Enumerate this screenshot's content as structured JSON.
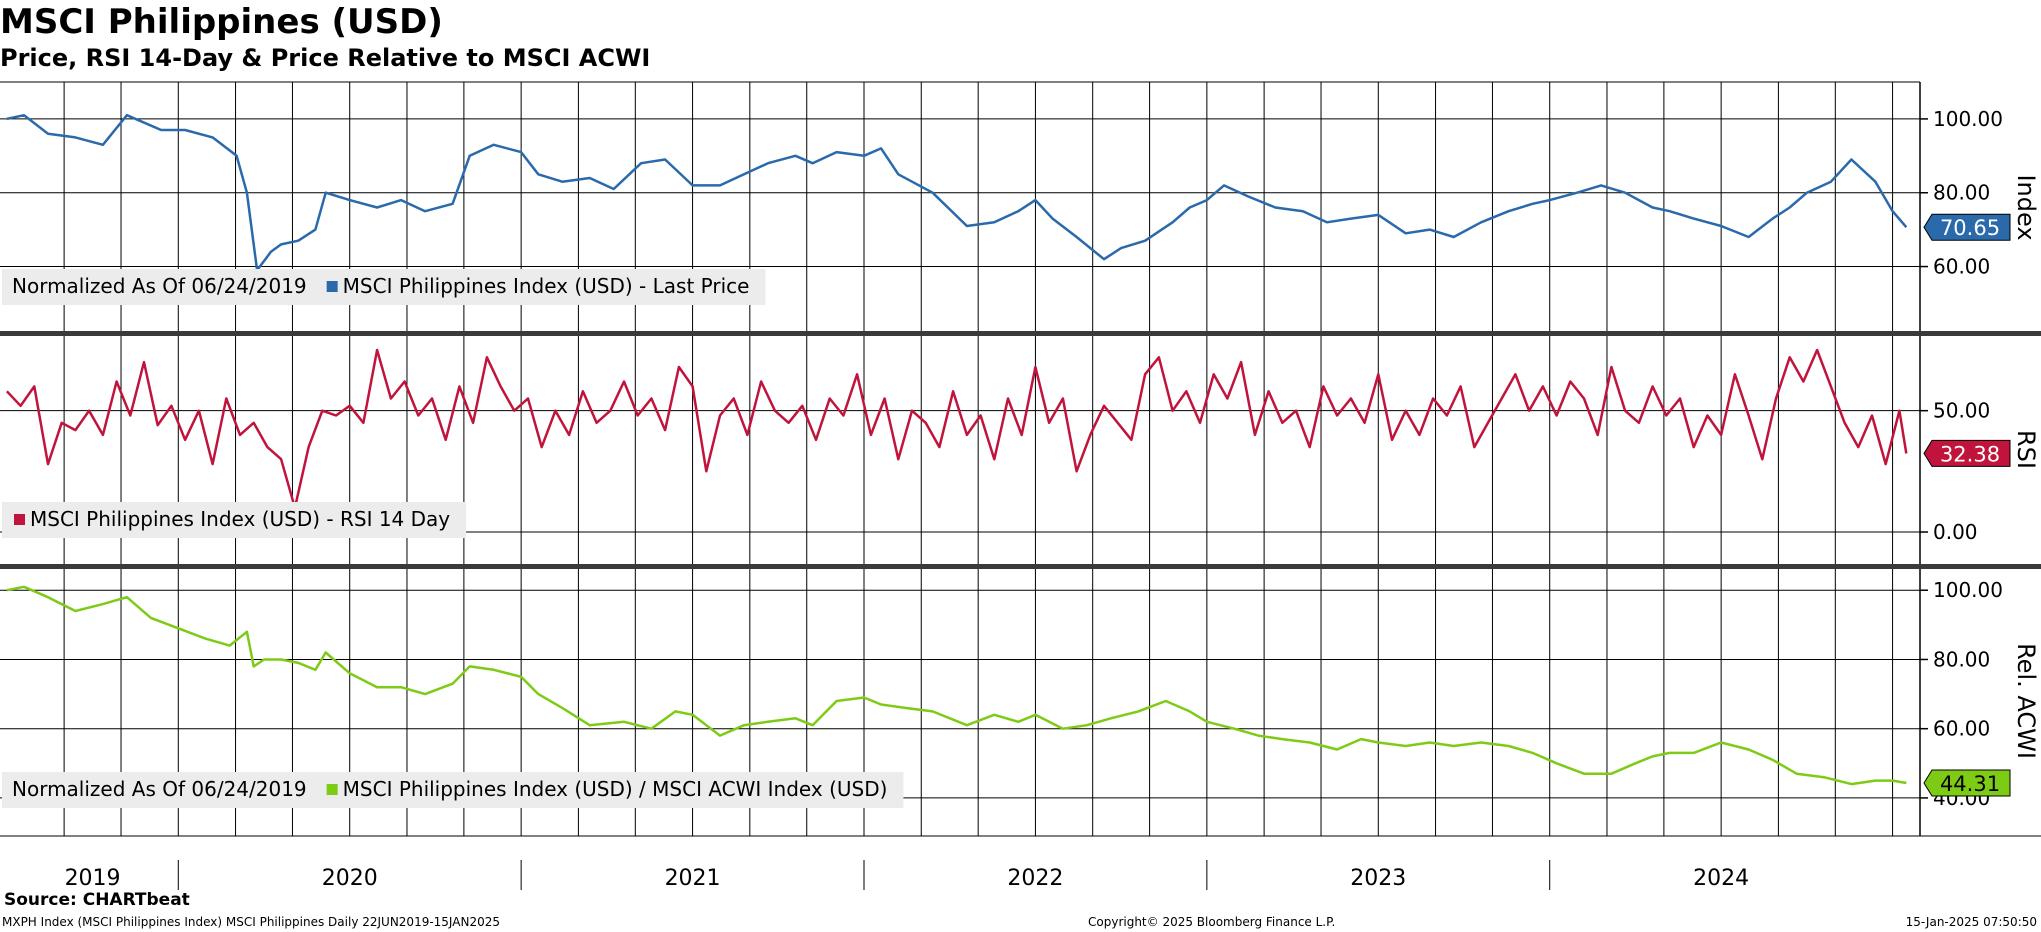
{
  "header": {
    "title": "MSCI Philippines (USD)",
    "subtitle": "Price, RSI 14-Day & Price Relative to MSCI ACWI"
  },
  "footer": {
    "source": "Source: CHARTbeat",
    "left": "MXPH Index (MSCI Philippines Index) MSCI Philippines  Daily 22JUN2019-15JAN2025",
    "center": "Copyright© 2025 Bloomberg Finance L.P.",
    "right": "15-Jan-2025 07:50:50"
  },
  "colors": {
    "price": "#2a6aab",
    "rsi": "#c0143c",
    "rel": "#7ecb16",
    "grid": "#000000"
  },
  "chart_data": [
    {
      "type": "line",
      "name": "price-panel",
      "ylabel": "Index",
      "ylim": [
        42,
        110
      ],
      "yticks": [
        60,
        80,
        100
      ],
      "ytick_labels": [
        "60.00",
        "80.00",
        "100.00"
      ],
      "legend_note": "Normalized As Of 06/24/2019",
      "legend_series": "MSCI Philippines Index (USD) - Last Price",
      "last_value_label": "70.65",
      "last_value": 70.65,
      "x": [
        2019.5,
        2019.55,
        2019.62,
        2019.7,
        2019.78,
        2019.85,
        2019.95,
        2020.02,
        2020.1,
        2020.17,
        2020.2,
        2020.23,
        2020.27,
        2020.3,
        2020.35,
        2020.4,
        2020.43,
        2020.5,
        2020.58,
        2020.65,
        2020.72,
        2020.8,
        2020.85,
        2020.92,
        2021.0,
        2021.05,
        2021.12,
        2021.2,
        2021.27,
        2021.35,
        2021.42,
        2021.5,
        2021.58,
        2021.65,
        2021.72,
        2021.8,
        2021.85,
        2021.92,
        2022.0,
        2022.05,
        2022.1,
        2022.2,
        2022.3,
        2022.38,
        2022.45,
        2022.5,
        2022.55,
        2022.62,
        2022.7,
        2022.75,
        2022.82,
        2022.9,
        2022.95,
        2023.0,
        2023.05,
        2023.12,
        2023.2,
        2023.28,
        2023.35,
        2023.42,
        2023.5,
        2023.58,
        2023.65,
        2023.72,
        2023.8,
        2023.88,
        2023.95,
        2024.0,
        2024.08,
        2024.15,
        2024.22,
        2024.3,
        2024.35,
        2024.42,
        2024.5,
        2024.58,
        2024.65,
        2024.7,
        2024.75,
        2024.82,
        2024.88,
        2024.95,
        2025.0,
        2025.04
      ],
      "y": [
        100,
        101,
        96,
        95,
        93,
        101,
        97,
        97,
        95,
        90,
        80,
        59,
        64,
        66,
        67,
        70,
        80,
        78,
        76,
        78,
        75,
        77,
        90,
        93,
        91,
        85,
        83,
        84,
        81,
        88,
        89,
        82,
        82,
        85,
        88,
        90,
        88,
        91,
        90,
        92,
        85,
        80,
        71,
        72,
        75,
        78,
        73,
        68,
        62,
        65,
        67,
        72,
        76,
        78,
        82,
        79,
        76,
        75,
        72,
        73,
        74,
        69,
        70,
        68,
        72,
        75,
        77,
        78,
        80,
        82,
        80,
        76,
        75,
        73,
        71,
        68,
        73,
        76,
        80,
        83,
        89,
        83,
        75,
        70.65
      ]
    },
    {
      "type": "line",
      "name": "rsi-panel",
      "ylabel": "RSI",
      "ylim": [
        -14,
        82
      ],
      "yticks": [
        0,
        50
      ],
      "ytick_labels": [
        "0.00",
        "50.00"
      ],
      "legend_series": "MSCI Philippines Index (USD) - RSI 14 Day",
      "last_value_label": "32.38",
      "last_value": 32.38,
      "x": [
        2019.5,
        2019.54,
        2019.58,
        2019.62,
        2019.66,
        2019.7,
        2019.74,
        2019.78,
        2019.82,
        2019.86,
        2019.9,
        2019.94,
        2019.98,
        2020.02,
        2020.06,
        2020.1,
        2020.14,
        2020.18,
        2020.22,
        2020.26,
        2020.3,
        2020.34,
        2020.38,
        2020.42,
        2020.46,
        2020.5,
        2020.54,
        2020.58,
        2020.62,
        2020.66,
        2020.7,
        2020.74,
        2020.78,
        2020.82,
        2020.86,
        2020.9,
        2020.94,
        2020.98,
        2021.02,
        2021.06,
        2021.1,
        2021.14,
        2021.18,
        2021.22,
        2021.26,
        2021.3,
        2021.34,
        2021.38,
        2021.42,
        2021.46,
        2021.5,
        2021.54,
        2021.58,
        2021.62,
        2021.66,
        2021.7,
        2021.74,
        2021.78,
        2021.82,
        2021.86,
        2021.9,
        2021.94,
        2021.98,
        2022.02,
        2022.06,
        2022.1,
        2022.14,
        2022.18,
        2022.22,
        2022.26,
        2022.3,
        2022.34,
        2022.38,
        2022.42,
        2022.46,
        2022.5,
        2022.54,
        2022.58,
        2022.62,
        2022.66,
        2022.7,
        2022.74,
        2022.78,
        2022.82,
        2022.86,
        2022.9,
        2022.94,
        2022.98,
        2023.02,
        2023.06,
        2023.1,
        2023.14,
        2023.18,
        2023.22,
        2023.26,
        2023.3,
        2023.34,
        2023.38,
        2023.42,
        2023.46,
        2023.5,
        2023.54,
        2023.58,
        2023.62,
        2023.66,
        2023.7,
        2023.74,
        2023.78,
        2023.82,
        2023.86,
        2023.9,
        2023.94,
        2023.98,
        2024.02,
        2024.06,
        2024.1,
        2024.14,
        2024.18,
        2024.22,
        2024.26,
        2024.3,
        2024.34,
        2024.38,
        2024.42,
        2024.46,
        2024.5,
        2024.54,
        2024.58,
        2024.62,
        2024.66,
        2024.7,
        2024.74,
        2024.78,
        2024.82,
        2024.86,
        2024.9,
        2024.94,
        2024.98,
        2025.02,
        2025.04
      ],
      "y": [
        58,
        52,
        60,
        28,
        45,
        42,
        50,
        40,
        62,
        48,
        70,
        44,
        52,
        38,
        50,
        28,
        55,
        40,
        45,
        35,
        30,
        10,
        35,
        50,
        48,
        52,
        45,
        75,
        55,
        62,
        48,
        55,
        38,
        60,
        45,
        72,
        60,
        50,
        55,
        35,
        50,
        40,
        58,
        45,
        50,
        62,
        48,
        55,
        42,
        68,
        60,
        25,
        48,
        55,
        40,
        62,
        50,
        45,
        52,
        38,
        55,
        48,
        65,
        40,
        55,
        30,
        50,
        45,
        35,
        58,
        40,
        48,
        30,
        55,
        40,
        68,
        45,
        55,
        25,
        40,
        52,
        45,
        38,
        65,
        72,
        50,
        58,
        45,
        65,
        55,
        70,
        40,
        58,
        45,
        50,
        35,
        60,
        48,
        55,
        45,
        65,
        38,
        50,
        40,
        55,
        48,
        60,
        35,
        45,
        55,
        65,
        50,
        60,
        48,
        62,
        55,
        40,
        68,
        50,
        45,
        60,
        48,
        55,
        35,
        48,
        40,
        65,
        48,
        30,
        55,
        72,
        62,
        75,
        60,
        45,
        35,
        48,
        28,
        50,
        32.38
      ]
    },
    {
      "type": "line",
      "name": "relative-panel",
      "ylabel": "Rel. ACWI",
      "ylim": [
        29,
        107
      ],
      "yticks": [
        40,
        60,
        80,
        100
      ],
      "ytick_labels": [
        "40.00",
        "60.00",
        "80.00",
        "100.00"
      ],
      "legend_note": "Normalized As Of 06/24/2019",
      "legend_series": "MSCI Philippines Index (USD) / MSCI ACWI Index (USD)",
      "last_value_label": "44.31",
      "last_value": 44.31,
      "x": [
        2019.5,
        2019.55,
        2019.62,
        2019.7,
        2019.78,
        2019.85,
        2019.92,
        2020.0,
        2020.08,
        2020.15,
        2020.2,
        2020.22,
        2020.25,
        2020.3,
        2020.35,
        2020.4,
        2020.43,
        2020.5,
        2020.58,
        2020.65,
        2020.72,
        2020.8,
        2020.85,
        2020.92,
        2021.0,
        2021.05,
        2021.12,
        2021.2,
        2021.3,
        2021.38,
        2021.45,
        2021.5,
        2021.58,
        2021.65,
        2021.72,
        2021.8,
        2021.85,
        2021.92,
        2022.0,
        2022.05,
        2022.12,
        2022.2,
        2022.3,
        2022.38,
        2022.45,
        2022.5,
        2022.58,
        2022.65,
        2022.72,
        2022.8,
        2022.88,
        2022.95,
        2023.0,
        2023.08,
        2023.15,
        2023.22,
        2023.3,
        2023.38,
        2023.45,
        2023.5,
        2023.58,
        2023.65,
        2023.72,
        2023.8,
        2023.88,
        2023.95,
        2024.02,
        2024.1,
        2024.18,
        2024.25,
        2024.3,
        2024.35,
        2024.42,
        2024.5,
        2024.58,
        2024.65,
        2024.72,
        2024.8,
        2024.88,
        2024.95,
        2025.0,
        2025.04
      ],
      "y": [
        100,
        101,
        98,
        94,
        96,
        98,
        92,
        89,
        86,
        84,
        88,
        78,
        80,
        80,
        79,
        77,
        82,
        76,
        72,
        72,
        70,
        73,
        78,
        77,
        75,
        70,
        66,
        61,
        62,
        60,
        65,
        64,
        58,
        61,
        62,
        63,
        61,
        68,
        69,
        67,
        66,
        65,
        61,
        64,
        62,
        64,
        60,
        61,
        63,
        65,
        68,
        65,
        62,
        60,
        58,
        57,
        56,
        54,
        57,
        56,
        55,
        56,
        55,
        56,
        55,
        53,
        50,
        47,
        47,
        50,
        52,
        53,
        53,
        56,
        54,
        51,
        47,
        46,
        44,
        45,
        45,
        44.31
      ]
    }
  ],
  "x_axis": {
    "ticks": [
      2020,
      2021,
      2022,
      2023,
      2024
    ],
    "year_labels": [
      {
        "year": "2019",
        "center": 2019.75
      },
      {
        "year": "2020",
        "center": 2020.5
      },
      {
        "year": "2021",
        "center": 2021.5
      },
      {
        "year": "2022",
        "center": 2022.5
      },
      {
        "year": "2023",
        "center": 2023.5
      },
      {
        "year": "2024",
        "center": 2024.5
      }
    ],
    "minor_months": [
      2019.667,
      2019.833,
      2020.0,
      2020.167,
      2020.333,
      2020.5,
      2020.667,
      2020.833,
      2021.0,
      2021.167,
      2021.333,
      2021.5,
      2021.667,
      2021.833,
      2022.0,
      2022.167,
      2022.333,
      2022.5,
      2022.667,
      2022.833,
      2023.0,
      2023.167,
      2023.333,
      2023.5,
      2023.667,
      2023.833,
      2024.0,
      2024.167,
      2024.333,
      2024.5,
      2024.667,
      2024.833,
      2025.0
    ]
  }
}
